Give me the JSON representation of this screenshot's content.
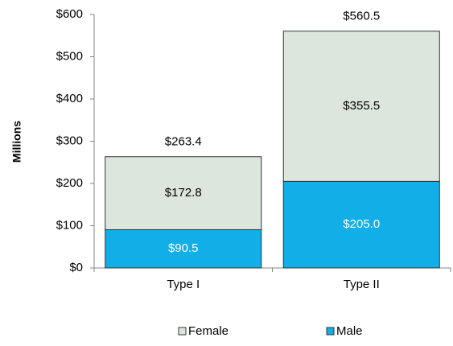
{
  "chart_data": {
    "type": "stacked_bar",
    "y_label": "Millions",
    "categories": [
      "Type I",
      "Type II"
    ],
    "series": [
      {
        "name": "Male",
        "color": "#12aee8",
        "values": [
          90.5,
          205.0
        ],
        "value_labels": [
          "$90.5",
          "$205.0"
        ]
      },
      {
        "name": "Female",
        "color": "#dde6dd",
        "values": [
          172.8,
          355.5
        ],
        "value_labels": [
          "$172.8",
          "$355.5"
        ]
      }
    ],
    "totals": [
      263.4,
      560.5
    ],
    "total_labels": [
      "$263.4",
      "$560.5"
    ],
    "ylim": [
      0,
      600
    ],
    "yticks": [
      {
        "value": 0,
        "label": "$0"
      },
      {
        "value": 100,
        "label": "$100"
      },
      {
        "value": 200,
        "label": "$200"
      },
      {
        "value": 300,
        "label": "$300"
      },
      {
        "value": 400,
        "label": "$400"
      },
      {
        "value": 500,
        "label": "$500"
      },
      {
        "value": 600,
        "label": "$600"
      }
    ],
    "grid": false,
    "legend": "bottom"
  }
}
